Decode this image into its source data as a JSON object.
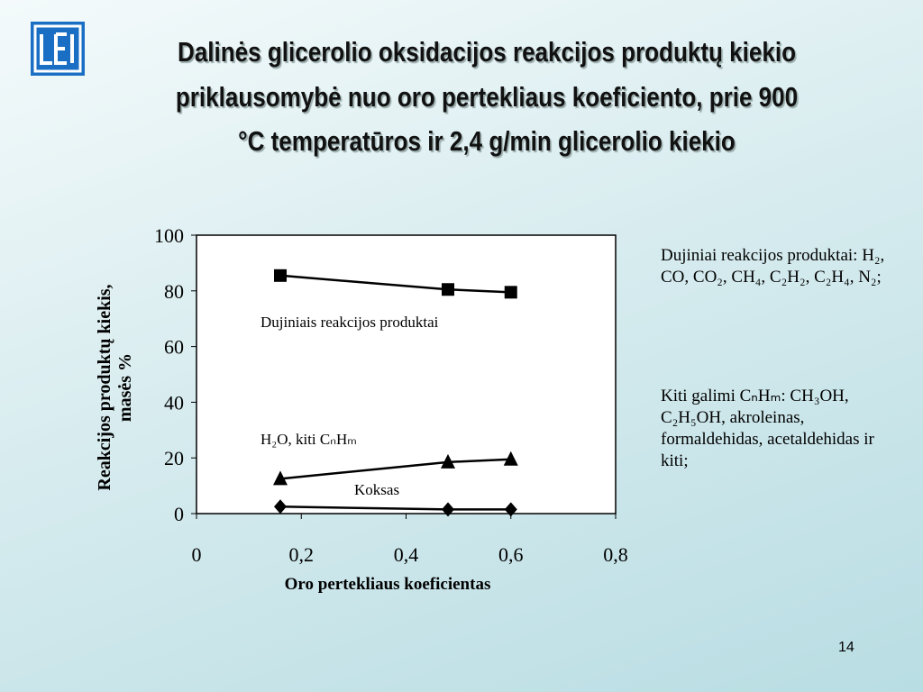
{
  "slide": {
    "title_lines": [
      "Dalinės glicerolio oksidacijos reakcijos produktų kiekio",
      "priklausomybė nuo oro pertekliaus koeficiento, prie 900",
      "°C temperatūros ir 2,4 g/min glicerolio kiekio"
    ],
    "notes": [
      "Dujiniai reakcijos produktai: H₂, CO, CO₂, CH₄, C₂H₂, C₂H₄, N₂;",
      "Kiti galimi CₙHₘ: CH₃OH, C₂H₅OH, akroleinas, formaldehidas, acetaldehidas ir kiti;"
    ],
    "page_number": "14"
  },
  "chart_data": {
    "type": "line",
    "x_label": "Oro pertekliaus koeficientas",
    "y_label": "Reakcijos produktų kiekis, masės %",
    "x": [
      0.16,
      0.48,
      0.6
    ],
    "series": [
      {
        "name": "Dujiniais reakcijos produktai",
        "color": "#000000",
        "marker": "square",
        "values": [
          85.5,
          80.5,
          79.5
        ]
      },
      {
        "name": "H₂O, kiti CₙHₘ",
        "color": "#000000",
        "marker": "triangle",
        "values": [
          12.5,
          18.5,
          19.5
        ]
      },
      {
        "name": "Koksas",
        "color": "#000000",
        "marker": "diamond",
        "values": [
          2.5,
          1.5,
          1.5
        ]
      }
    ],
    "xlim": [
      0,
      0.8
    ],
    "xticks": [
      0,
      {
        "value": 0.2,
        "label": "0,2"
      },
      {
        "value": 0.4,
        "label": "0,4"
      },
      {
        "value": 0.6,
        "label": "0,6"
      },
      {
        "value": 0.8,
        "label": "0,8"
      }
    ],
    "ylim": [
      0,
      100
    ],
    "yticks": [
      0,
      20,
      40,
      60,
      80,
      100
    ]
  }
}
